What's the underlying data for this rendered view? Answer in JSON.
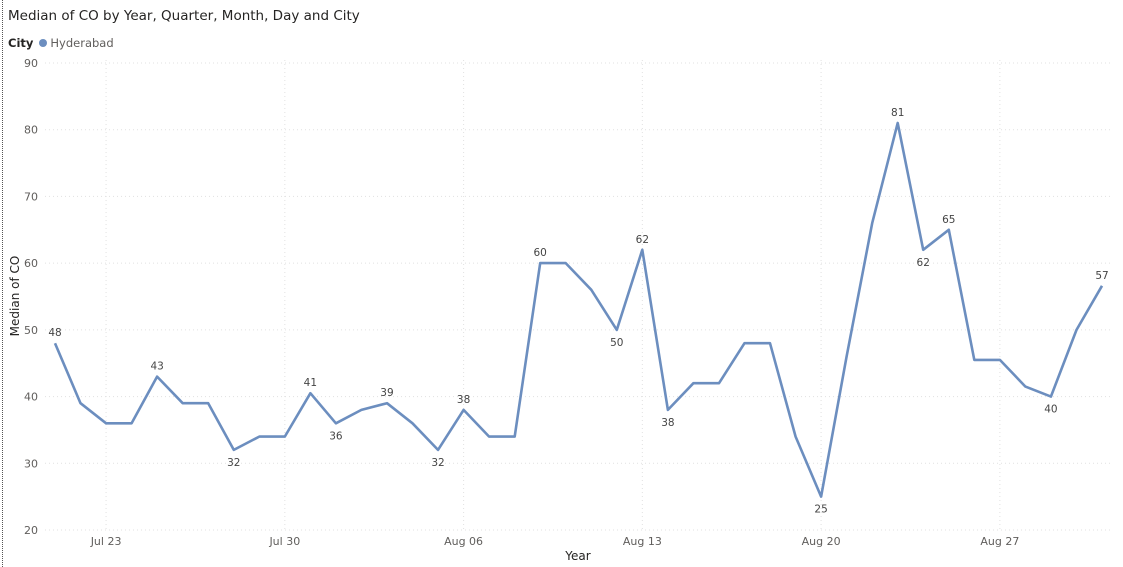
{
  "chart_data": {
    "type": "line",
    "title": "Median of CO by Year, Quarter, Month, Day and City",
    "legend_title": "City",
    "xlabel": "Year",
    "ylabel": "Median of CO",
    "ylim": [
      20,
      90
    ],
    "yticks": [
      20,
      30,
      40,
      50,
      60,
      70,
      80,
      90
    ],
    "xtick_labels": [
      {
        "label": "Jul 23",
        "index": 2
      },
      {
        "label": "Jul 30",
        "index": 9
      },
      {
        "label": "Aug 06",
        "index": 16
      },
      {
        "label": "Aug 13",
        "index": 23
      },
      {
        "label": "Aug 20",
        "index": 30
      },
      {
        "label": "Aug 27",
        "index": 37
      }
    ],
    "grid": true,
    "legend_position": "top-left",
    "color": "#6c8ebf",
    "x": [
      "Jul 21",
      "Jul 22",
      "Jul 23",
      "Jul 24",
      "Jul 25",
      "Jul 26",
      "Jul 27",
      "Jul 28",
      "Jul 29",
      "Jul 30",
      "Jul 31",
      "Aug 01",
      "Aug 02",
      "Aug 03",
      "Aug 04",
      "Aug 05",
      "Aug 06",
      "Aug 07",
      "Aug 08",
      "Aug 09",
      "Aug 10",
      "Aug 11",
      "Aug 12",
      "Aug 13",
      "Aug 14",
      "Aug 15",
      "Aug 16",
      "Aug 17",
      "Aug 18",
      "Aug 19",
      "Aug 20",
      "Aug 21",
      "Aug 22",
      "Aug 23",
      "Aug 24",
      "Aug 25",
      "Aug 26",
      "Aug 27",
      "Aug 28",
      "Aug 29",
      "Aug 30",
      "Aug 31"
    ],
    "series": [
      {
        "name": "Hyderabad",
        "values": [
          48,
          39,
          36,
          36,
          43,
          39,
          39,
          32,
          34,
          34,
          40.5,
          36,
          38,
          39,
          36,
          32,
          38,
          34,
          34,
          60,
          60,
          56,
          50,
          62,
          38,
          42,
          42,
          48,
          48,
          34,
          25,
          46,
          66,
          81,
          62,
          65,
          45.5,
          45.5,
          41.5,
          40,
          50,
          56.6
        ]
      }
    ],
    "data_labels": [
      {
        "index": 0,
        "text": "48",
        "pos": "above"
      },
      {
        "index": 4,
        "text": "43",
        "pos": "above"
      },
      {
        "index": 7,
        "text": "32",
        "pos": "below"
      },
      {
        "index": 10,
        "text": "41",
        "pos": "above"
      },
      {
        "index": 11,
        "text": "36",
        "pos": "below"
      },
      {
        "index": 13,
        "text": "39",
        "pos": "above"
      },
      {
        "index": 15,
        "text": "32",
        "pos": "below"
      },
      {
        "index": 16,
        "text": "38",
        "pos": "above"
      },
      {
        "index": 19,
        "text": "60",
        "pos": "above"
      },
      {
        "index": 22,
        "text": "50",
        "pos": "below"
      },
      {
        "index": 23,
        "text": "62",
        "pos": "above"
      },
      {
        "index": 24,
        "text": "38",
        "pos": "below"
      },
      {
        "index": 30,
        "text": "25",
        "pos": "below"
      },
      {
        "index": 33,
        "text": "81",
        "pos": "above"
      },
      {
        "index": 34,
        "text": "62",
        "pos": "below"
      },
      {
        "index": 35,
        "text": "65",
        "pos": "above"
      },
      {
        "index": 39,
        "text": "40",
        "pos": "below"
      },
      {
        "index": 41,
        "text": "57",
        "pos": "above"
      }
    ]
  }
}
